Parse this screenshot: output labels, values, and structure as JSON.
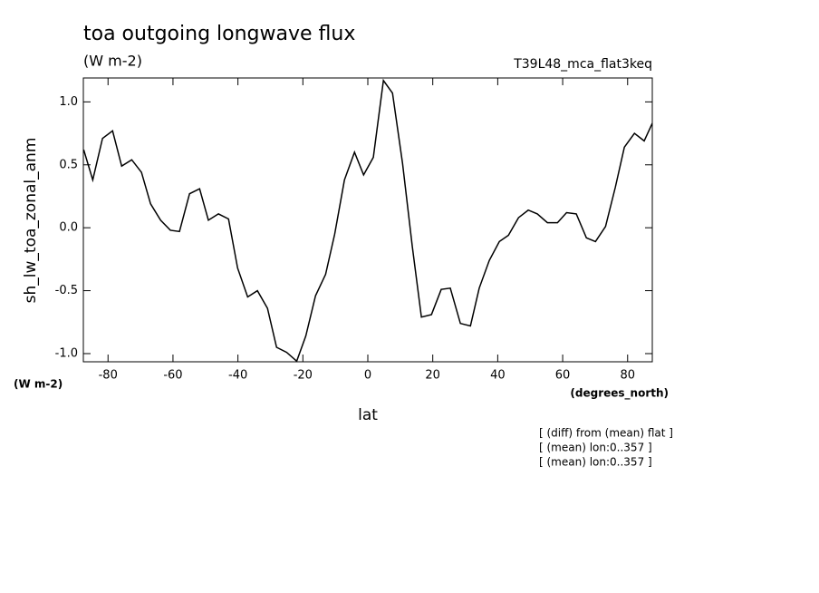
{
  "chart_data": {
    "type": "line",
    "title": "toa outgoing longwave flux",
    "subtitle": "(W m-2)",
    "experiment": "T39L48_mca_flat3keq",
    "y_label": "sh_lw_toa_zonal_anm",
    "y_units": "(W m-2)",
    "x_label": "lat",
    "x_units": "(degrees_north)",
    "annotations": [
      "[ (diff) from (mean) flat ]",
      "[ (mean) lon:0..357 ]",
      "[ (mean) lon:0..357 ]"
    ],
    "x": [
      -87.5,
      -84.7,
      -81.7,
      -78.6,
      -75.8,
      -72.7,
      -69.7,
      -66.9,
      -63.8,
      -60.8,
      -58.0,
      -54.9,
      -51.8,
      -49.1,
      -46.0,
      -42.9,
      -40.1,
      -37.0,
      -34.0,
      -30.9,
      -28.1,
      -25.0,
      -21.9,
      -19.1,
      -16.1,
      -13.0,
      -10.2,
      -7.2,
      -4.1,
      -1.3,
      1.7,
      4.8,
      7.6,
      10.7,
      13.7,
      16.5,
      19.6,
      22.6,
      25.4,
      28.5,
      31.6,
      34.3,
      37.4,
      40.5,
      43.3,
      46.4,
      49.4,
      52.2,
      55.3,
      58.4,
      61.2,
      64.2,
      67.3,
      70.1,
      73.2,
      76.2,
      79.0,
      82.1,
      85.1,
      87.6
    ],
    "series": [
      {
        "name": "sh_lw_toa_zonal_anm",
        "color": "#000000",
        "values": [
          0.62,
          0.38,
          0.71,
          0.77,
          0.49,
          0.54,
          0.44,
          0.19,
          0.06,
          -0.02,
          -0.03,
          0.27,
          0.31,
          0.06,
          0.11,
          0.07,
          -0.32,
          -0.55,
          -0.5,
          -0.64,
          -0.95,
          -0.99,
          -1.06,
          -0.86,
          -0.54,
          -0.37,
          -0.05,
          0.38,
          0.6,
          0.42,
          0.56,
          1.17,
          1.07,
          0.51,
          -0.15,
          -0.71,
          -0.69,
          -0.49,
          -0.48,
          -0.76,
          -0.78,
          -0.48,
          -0.26,
          -0.11,
          -0.06,
          0.08,
          0.14,
          0.11,
          0.04,
          0.04,
          0.12,
          0.11,
          -0.08,
          -0.11,
          0.01,
          0.32,
          0.64,
          0.75,
          0.69,
          0.83
        ]
      }
    ],
    "xlim": [
      -87.6,
      87.6
    ],
    "ylim": [
      -1.065,
      1.19
    ],
    "xticks": [
      -80,
      -60,
      -40,
      -20,
      0,
      20,
      40,
      60,
      80
    ],
    "yticks": [
      {
        "value": -1.0,
        "label": "-1.0"
      },
      {
        "value": -0.5,
        "label": "-0.5"
      },
      {
        "value": 0.0,
        "label": "0.0"
      },
      {
        "value": 0.5,
        "label": "0.5"
      },
      {
        "value": 1.0,
        "label": "1.0"
      }
    ],
    "grid": false
  }
}
